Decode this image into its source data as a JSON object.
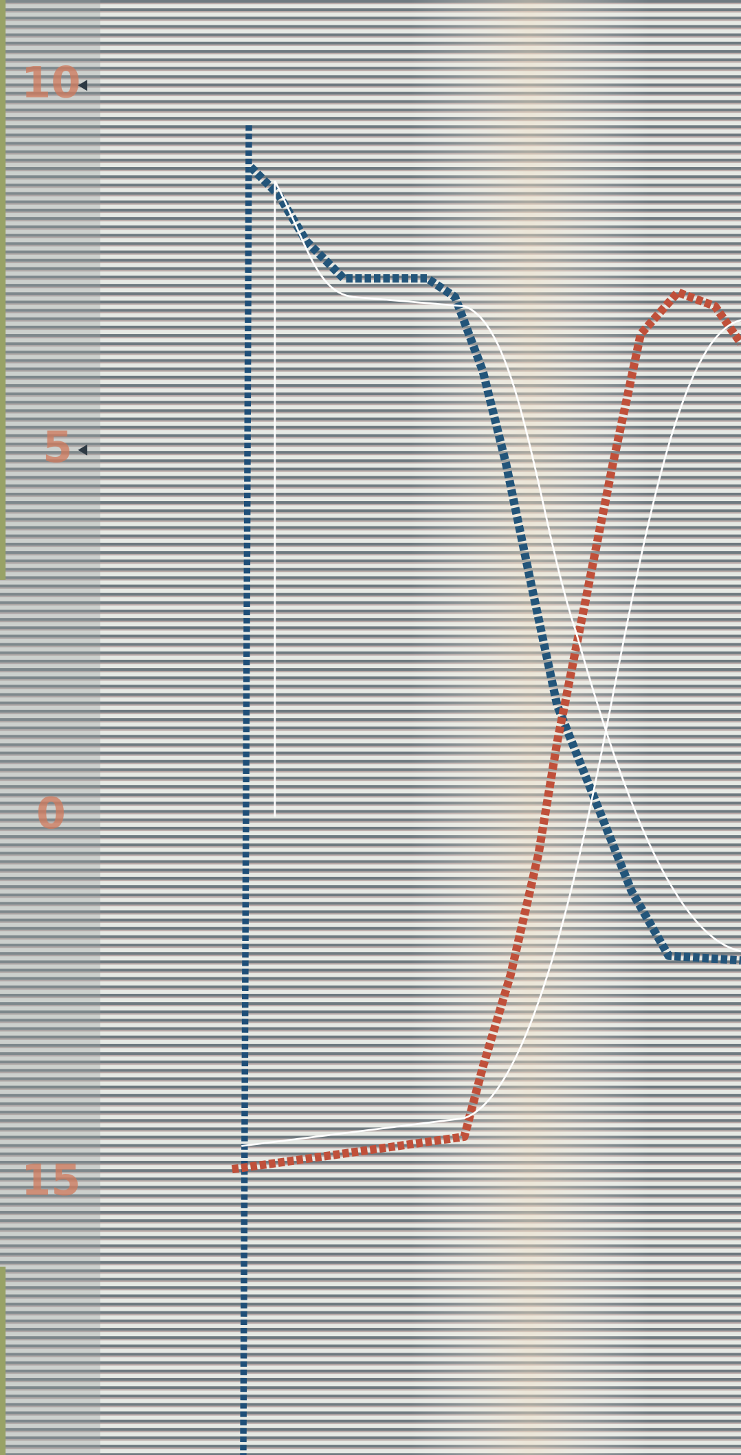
{
  "photo": {
    "axis_labels": [
      "10",
      "5",
      "0",
      "15"
    ]
  }
}
